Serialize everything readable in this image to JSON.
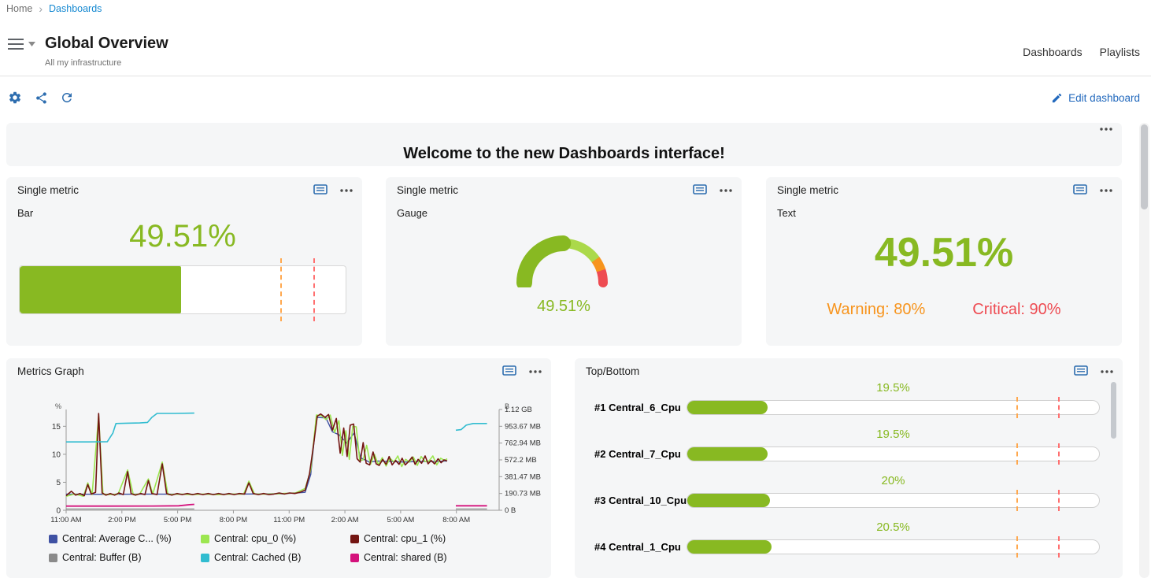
{
  "breadcrumb": {
    "home": "Home",
    "separator": "›",
    "current": "Dashboards"
  },
  "header": {
    "title": "Global Overview",
    "subtitle": "All my infrastructure",
    "nav_dashboards": "Dashboards",
    "nav_playlists": "Playlists"
  },
  "toolbar": {
    "edit_label": "Edit dashboard"
  },
  "banner": {
    "text": "Welcome to the new Dashboards interface!"
  },
  "colors": {
    "green": "#88b922",
    "green_light": "#abd94a",
    "warning": "#f7941d",
    "warning_dash": "#ffa84e",
    "critical": "#ee4b52",
    "critical_dash": "#ff7070",
    "icon_blue": "#2d6daf",
    "link_blue": "#1588d1"
  },
  "single_metric_bar": {
    "title": "Single metric",
    "subtitle": "Bar",
    "value": "49.51%",
    "percent": 49.51,
    "warning_percent": 80,
    "critical_percent": 90
  },
  "single_metric_gauge": {
    "title": "Single metric",
    "subtitle": "Gauge",
    "value": "49.51%",
    "percent": 49.51,
    "warning_percent": 80,
    "critical_percent": 90
  },
  "single_metric_text": {
    "title": "Single metric",
    "subtitle": "Text",
    "value": "49.51%",
    "warning_label": "Warning: 80%",
    "critical_label": "Critical: 90%"
  },
  "metrics_graph": {
    "title": "Metrics Graph",
    "chart_data": {
      "type": "line",
      "x_ticks": [
        "11:00 AM",
        "2:00 PM",
        "5:00 PM",
        "8:00 PM",
        "11:00 PM",
        "2:00 AM",
        "5:00 AM",
        "8:00 AM"
      ],
      "left_axis": {
        "label": "%",
        "ticks": [
          0,
          5,
          10,
          15
        ],
        "max": 18
      },
      "right_axis": {
        "label": "B",
        "ticks": [
          "1.12 GB",
          "953.67 MB",
          "762.94 MB",
          "572.2 MB",
          "381.47 MB",
          "190.73 MB",
          "0 B"
        ]
      },
      "series": [
        {
          "name": "Central: Average C... (%)",
          "color": "#3f51a3",
          "width": 1.4,
          "segments": [
            [
              [
                0,
                2.9
              ],
              [
                0.1,
                2.85
              ],
              [
                0.2,
                2.9
              ],
              [
                0.3,
                2.85
              ],
              [
                0.4,
                2.9
              ],
              [
                0.5,
                2.95
              ],
              [
                0.552,
                3.2
              ],
              [
                0.565,
                6.4
              ],
              [
                0.578,
                16.6
              ],
              [
                0.6,
                16.5
              ],
              [
                0.615,
                14.0
              ],
              [
                0.63,
                13.5
              ],
              [
                0.648,
                12.0
              ],
              [
                0.665,
                13.8
              ],
              [
                0.68,
                9.4
              ],
              [
                0.7,
                8.6
              ],
              [
                0.72,
                8.8
              ],
              [
                0.75,
                8.7
              ],
              [
                0.78,
                8.6
              ],
              [
                0.81,
                8.7
              ],
              [
                0.85,
                8.7
              ],
              [
                0.88,
                8.8
              ]
            ]
          ]
        },
        {
          "name": "Central: cpu_0 (%)",
          "color": "#9ce650",
          "width": 1.6,
          "segments": [
            [
              [
                0,
                2.5
              ],
              [
                0.02,
                2.9
              ],
              [
                0.04,
                2.5
              ],
              [
                0.05,
                4.9
              ],
              [
                0.06,
                2.8
              ],
              [
                0.075,
                16.9
              ],
              [
                0.085,
                2.9
              ],
              [
                0.1,
                2.8
              ],
              [
                0.12,
                2.9
              ],
              [
                0.142,
                7.2
              ],
              [
                0.155,
                2.8
              ],
              [
                0.17,
                2.9
              ],
              [
                0.19,
                5.6
              ],
              [
                0.2,
                2.9
              ],
              [
                0.222,
                8.6
              ],
              [
                0.235,
                2.8
              ],
              [
                0.26,
                2.9
              ],
              [
                0.29,
                2.8
              ],
              [
                0.32,
                2.9
              ],
              [
                0.35,
                2.8
              ],
              [
                0.38,
                2.9
              ],
              [
                0.41,
                2.9
              ],
              [
                0.422,
                5.2
              ],
              [
                0.435,
                2.9
              ],
              [
                0.47,
                2.9
              ],
              [
                0.5,
                3.0
              ],
              [
                0.53,
                3.1
              ],
              [
                0.552,
                3.9
              ],
              [
                0.565,
                7.2
              ],
              [
                0.578,
                17.0
              ],
              [
                0.59,
                16.9
              ],
              [
                0.6,
                16.2
              ],
              [
                0.61,
                17.0
              ],
              [
                0.62,
                13.9
              ],
              [
                0.63,
                16.0
              ],
              [
                0.638,
                9.8
              ],
              [
                0.646,
                14.2
              ],
              [
                0.654,
                9.1
              ],
              [
                0.662,
                15.0
              ],
              [
                0.67,
                14.9
              ],
              [
                0.678,
                8.9
              ],
              [
                0.686,
                9.0
              ],
              [
                0.694,
                11.6
              ],
              [
                0.703,
                8.2
              ],
              [
                0.712,
                10.0
              ],
              [
                0.721,
                8.1
              ],
              [
                0.73,
                9.4
              ],
              [
                0.739,
                7.9
              ],
              [
                0.748,
                9.3
              ],
              [
                0.757,
                8.6
              ],
              [
                0.766,
                9.7
              ],
              [
                0.775,
                7.8
              ],
              [
                0.784,
                9.1
              ],
              [
                0.793,
                8.6
              ],
              [
                0.802,
                9.5
              ],
              [
                0.811,
                8.0
              ],
              [
                0.82,
                9.6
              ],
              [
                0.829,
                8.7
              ],
              [
                0.838,
                8.8
              ],
              [
                0.847,
                9.7
              ],
              [
                0.856,
                8.1
              ],
              [
                0.865,
                9.3
              ],
              [
                0.874,
                8.9
              ],
              [
                0.88,
                9.2
              ]
            ]
          ]
        },
        {
          "name": "Central: cpu_1 (%)",
          "color": "#731512",
          "width": 1.6,
          "segments": [
            [
              [
                0,
                2.6
              ],
              [
                0.012,
                3.4
              ],
              [
                0.022,
                2.7
              ],
              [
                0.032,
                3.0
              ],
              [
                0.042,
                2.6
              ],
              [
                0.05,
                4.6
              ],
              [
                0.058,
                2.9
              ],
              [
                0.068,
                3.2
              ],
              [
                0.075,
                17.3
              ],
              [
                0.083,
                3.1
              ],
              [
                0.092,
                2.7
              ],
              [
                0.102,
                3.0
              ],
              [
                0.112,
                2.7
              ],
              [
                0.122,
                3.1
              ],
              [
                0.132,
                2.8
              ],
              [
                0.142,
                6.9
              ],
              [
                0.15,
                3.0
              ],
              [
                0.16,
                2.7
              ],
              [
                0.172,
                3.0
              ],
              [
                0.182,
                2.8
              ],
              [
                0.19,
                5.3
              ],
              [
                0.198,
                3.0
              ],
              [
                0.21,
                2.8
              ],
              [
                0.222,
                8.3
              ],
              [
                0.232,
                3.0
              ],
              [
                0.244,
                2.7
              ],
              [
                0.256,
                3.0
              ],
              [
                0.268,
                2.8
              ],
              [
                0.28,
                3.0
              ],
              [
                0.292,
                2.8
              ],
              [
                0.304,
                3.0
              ],
              [
                0.316,
                2.8
              ],
              [
                0.328,
                3.0
              ],
              [
                0.34,
                2.8
              ],
              [
                0.352,
                3.0
              ],
              [
                0.364,
                2.8
              ],
              [
                0.376,
                3.0
              ],
              [
                0.388,
                2.8
              ],
              [
                0.4,
                3.0
              ],
              [
                0.412,
                2.9
              ],
              [
                0.422,
                4.9
              ],
              [
                0.432,
                3.0
              ],
              [
                0.444,
                2.8
              ],
              [
                0.456,
                3.0
              ],
              [
                0.468,
                2.8
              ],
              [
                0.48,
                2.9
              ],
              [
                0.492,
                3.1
              ],
              [
                0.504,
                2.9
              ],
              [
                0.516,
                3.1
              ],
              [
                0.528,
                3.0
              ],
              [
                0.54,
                3.2
              ],
              [
                0.552,
                3.6
              ],
              [
                0.562,
                6.5
              ],
              [
                0.572,
                12.0
              ],
              [
                0.58,
                16.8
              ],
              [
                0.588,
                17.2
              ],
              [
                0.598,
                16.6
              ],
              [
                0.606,
                17.1
              ],
              [
                0.615,
                14.3
              ],
              [
                0.624,
                16.4
              ],
              [
                0.633,
                10.2
              ],
              [
                0.641,
                14.7
              ],
              [
                0.649,
                9.6
              ],
              [
                0.656,
                15.2
              ],
              [
                0.664,
                15.4
              ],
              [
                0.672,
                9.2
              ],
              [
                0.679,
                8.6
              ],
              [
                0.686,
                12.1
              ],
              [
                0.693,
                8.4
              ],
              [
                0.701,
                8.1
              ],
              [
                0.709,
                10.4
              ],
              [
                0.716,
                8.3
              ],
              [
                0.723,
                8.0
              ],
              [
                0.731,
                9.1
              ],
              [
                0.739,
                8.2
              ],
              [
                0.746,
                9.6
              ],
              [
                0.753,
                8.1
              ],
              [
                0.761,
                8.9
              ],
              [
                0.769,
                8.2
              ],
              [
                0.776,
                9.3
              ],
              [
                0.783,
                8.1
              ],
              [
                0.791,
                8.7
              ],
              [
                0.799,
                9.5
              ],
              [
                0.806,
                8.2
              ],
              [
                0.813,
                9.1
              ],
              [
                0.821,
                8.4
              ],
              [
                0.829,
                9.7
              ],
              [
                0.836,
                8.3
              ],
              [
                0.843,
                8.9
              ],
              [
                0.851,
                8.3
              ],
              [
                0.859,
                9.2
              ],
              [
                0.866,
                8.5
              ],
              [
                0.873,
                9.0
              ],
              [
                0.88,
                8.8
              ]
            ]
          ]
        },
        {
          "name": "Central: Buffer (B)",
          "color": "#8a8a8a",
          "width": 1.2,
          "segments": [
            [
              [
                0,
                0.22
              ],
              [
                0.15,
                0.22
              ],
              [
                0.296,
                0.22
              ]
            ],
            [
              [
                0.9,
                0.22
              ],
              [
                0.972,
                0.22
              ]
            ]
          ]
        },
        {
          "name": "Central: Cached (B)",
          "color": "#31bcd0",
          "width": 1.6,
          "segments": [
            [
              [
                0,
                12.2
              ],
              [
                0.05,
                12.2
              ],
              [
                0.095,
                12.25
              ],
              [
                0.108,
                13.8
              ],
              [
                0.115,
                15.5
              ],
              [
                0.14,
                15.55
              ],
              [
                0.17,
                15.6
              ],
              [
                0.188,
                15.7
              ],
              [
                0.198,
                16.6
              ],
              [
                0.21,
                17.3
              ],
              [
                0.25,
                17.3
              ],
              [
                0.296,
                17.35
              ]
            ],
            [
              [
                0.9,
                14.3
              ],
              [
                0.912,
                14.4
              ],
              [
                0.924,
                15.2
              ],
              [
                0.94,
                15.5
              ],
              [
                0.972,
                15.5
              ]
            ]
          ]
        },
        {
          "name": "Central: shared (B)",
          "color": "#d4127c",
          "width": 1.8,
          "segments": [
            [
              [
                0,
                0.75
              ],
              [
                0.1,
                0.75
              ],
              [
                0.2,
                0.76
              ],
              [
                0.26,
                0.8
              ],
              [
                0.285,
                1.0
              ],
              [
                0.296,
                1.05
              ]
            ],
            [
              [
                0.9,
                0.8
              ],
              [
                0.94,
                0.8
              ],
              [
                0.972,
                0.8
              ]
            ]
          ]
        }
      ]
    }
  },
  "top_bottom": {
    "title": "Top/Bottom",
    "warning_percent": 80,
    "critical_percent": 90,
    "items": [
      {
        "label": "#1 Central_6_Cpu",
        "value": "19.5%",
        "percent": 19.5
      },
      {
        "label": "#2 Central_7_Cpu",
        "value": "19.5%",
        "percent": 19.5
      },
      {
        "label": "#3 Central_10_Cpu",
        "value": "20%",
        "percent": 20
      },
      {
        "label": "#4 Central_1_Cpu",
        "value": "20.5%",
        "percent": 20.5
      }
    ]
  }
}
